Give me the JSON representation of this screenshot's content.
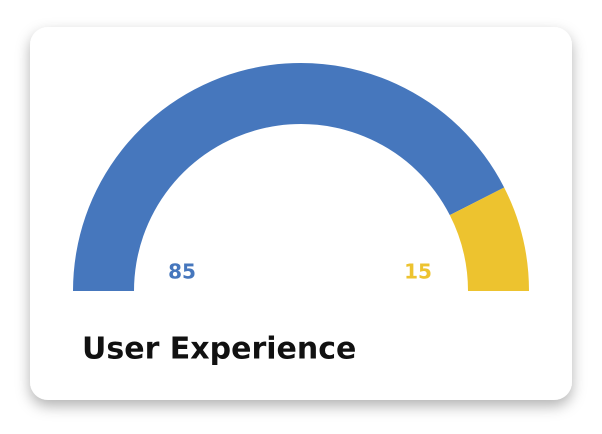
{
  "chart_data": {
    "type": "gauge",
    "title": "User Experience",
    "values": [
      85,
      15
    ],
    "colors": [
      "#4677bd",
      "#edc32f"
    ]
  }
}
